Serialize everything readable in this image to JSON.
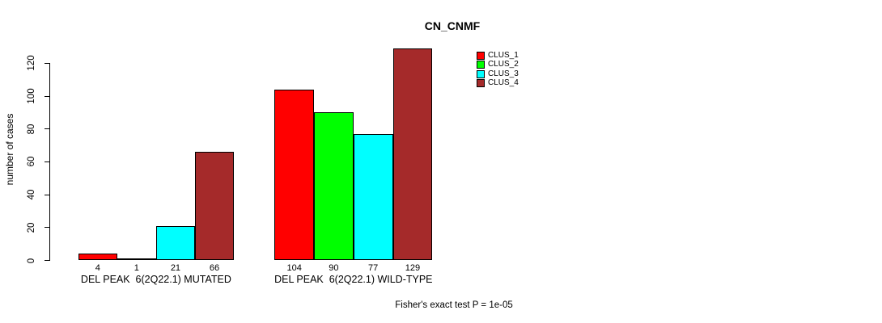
{
  "title": "CN_CNMF",
  "annotation": "Fisher's exact test P = 1e-05",
  "chart_data": {
    "type": "bar",
    "title": "CN_CNMF",
    "xlabel": "",
    "ylabel": "number of cases",
    "ylim": [
      0,
      130
    ],
    "yticks": [
      0,
      20,
      40,
      60,
      80,
      100,
      120
    ],
    "grid": false,
    "legend_position": "top-right",
    "bar_value_labels_shown": true,
    "categories": [
      "DEL PEAK  6(2Q22.1) MUTATED",
      "DEL PEAK  6(2Q22.1) WILD-TYPE"
    ],
    "series": [
      {
        "name": "CLUS_1",
        "color": "#ff0000",
        "values": [
          4,
          104
        ]
      },
      {
        "name": "CLUS_2",
        "color": "#00ff00",
        "values": [
          1,
          90
        ]
      },
      {
        "name": "CLUS_3",
        "color": "#00ffff",
        "values": [
          21,
          77
        ]
      },
      {
        "name": "CLUS_4",
        "color": "#a52a2a",
        "values": [
          66,
          129
        ]
      }
    ],
    "annotation": "Fisher's exact test P = 1e-05"
  }
}
